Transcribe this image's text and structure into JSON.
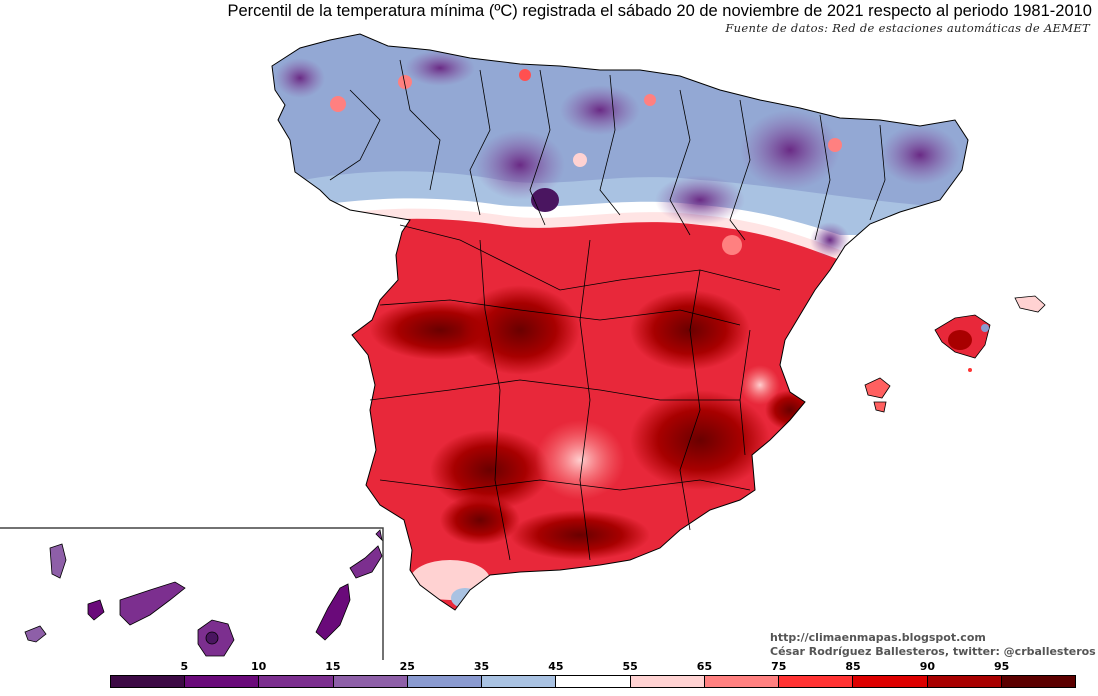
{
  "title": "Percentil de la temperatura mínima (ºC) registrada el sábado 20 de noviembre de 2021 respecto al periodo 1981-2010",
  "source": "Fuente de datos: Red de estaciones automáticas de AEMET",
  "credits": {
    "url": "http://climaenmapas.blogspot.com",
    "author": "César Rodríguez Ballesteros, twitter: @crballesteros"
  },
  "legend": {
    "colors": [
      "#3d0a45",
      "#6a0a7a",
      "#7c2f8f",
      "#8e5fa8",
      "#8a9ad0",
      "#a9c2e2",
      "#ffffff",
      "#ffd2d2",
      "#ff8080",
      "#ff3333",
      "#dd0000",
      "#a80000",
      "#5c0000"
    ],
    "labels": [
      "5",
      "10",
      "15",
      "25",
      "35",
      "45",
      "55",
      "65",
      "75",
      "85",
      "90",
      "95"
    ]
  },
  "regions": {
    "north": {
      "description_color": "#9aaed6",
      "tone": "cool"
    },
    "south": {
      "description_color": "#e8283a",
      "tone": "warm"
    }
  }
}
